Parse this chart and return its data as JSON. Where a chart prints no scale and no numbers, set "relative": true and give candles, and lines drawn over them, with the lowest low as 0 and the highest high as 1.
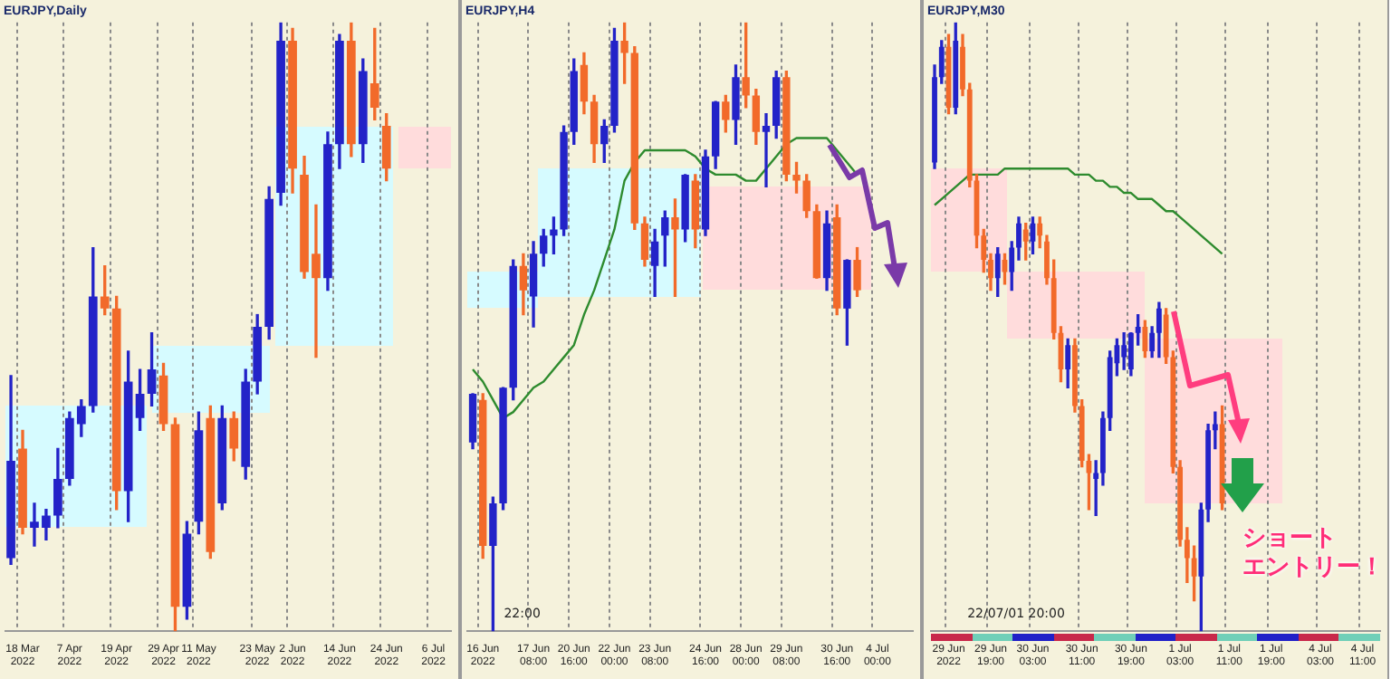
{
  "chart_data": [
    {
      "type": "candlestick",
      "title": "EURJPY,Daily",
      "relative": true,
      "grid": "x",
      "tick_labels": "x",
      "legend": false,
      "categories": [
        null,
        "18 Mar 2022",
        null,
        null,
        null,
        "7 Apr 2022",
        null,
        null,
        null,
        "19 Apr 2022",
        null,
        null,
        null,
        "29 Apr 2022",
        null,
        null,
        "11 May 2022",
        null,
        null,
        null,
        null,
        "23 May 2022",
        null,
        null,
        "2 Jun 2022",
        null,
        null,
        null,
        "14 Jun 2022",
        null,
        null,
        null,
        "24 Jun 2022",
        null,
        null,
        null,
        "6 Jul 2022",
        null
      ],
      "ohlc": [
        [
          0.12,
          0.42,
          0.11,
          0.28
        ],
        [
          0.3,
          0.33,
          0.16,
          0.17
        ],
        [
          0.17,
          0.21,
          0.14,
          0.18
        ],
        [
          0.17,
          0.2,
          0.15,
          0.19
        ],
        [
          0.19,
          0.3,
          0.17,
          0.25
        ],
        [
          0.25,
          0.36,
          0.24,
          0.35
        ],
        [
          0.34,
          0.38,
          0.32,
          0.37
        ],
        [
          0.37,
          0.63,
          0.36,
          0.55
        ],
        [
          0.55,
          0.6,
          0.52,
          0.53
        ],
        [
          0.53,
          0.55,
          0.2,
          0.23
        ],
        [
          0.23,
          0.46,
          0.18,
          0.41
        ],
        [
          0.35,
          0.43,
          0.33,
          0.39
        ],
        [
          0.39,
          0.49,
          0.37,
          0.43
        ],
        [
          0.42,
          0.44,
          0.33,
          0.34
        ],
        [
          0.34,
          0.35,
          0.0,
          0.04
        ],
        [
          0.04,
          0.18,
          0.02,
          0.16
        ],
        [
          0.18,
          0.36,
          0.16,
          0.33
        ],
        [
          0.35,
          0.37,
          0.12,
          0.13
        ],
        [
          0.21,
          0.37,
          0.2,
          0.35
        ],
        [
          0.35,
          0.36,
          0.28,
          0.3
        ],
        [
          0.27,
          0.43,
          0.25,
          0.41
        ],
        [
          0.41,
          0.52,
          0.39,
          0.5
        ],
        [
          0.5,
          0.73,
          0.48,
          0.71
        ],
        [
          0.72,
          1.0,
          0.7,
          0.97
        ],
        [
          0.97,
          0.99,
          0.72,
          0.76
        ],
        [
          0.75,
          0.78,
          0.58,
          0.59
        ],
        [
          0.62,
          0.7,
          0.45,
          0.58
        ],
        [
          0.58,
          0.82,
          0.56,
          0.8
        ],
        [
          0.8,
          0.98,
          0.76,
          0.97
        ],
        [
          0.97,
          1.0,
          0.78,
          0.8
        ],
        [
          0.8,
          0.94,
          0.77,
          0.92
        ],
        [
          0.9,
          0.99,
          0.84,
          0.86
        ],
        [
          0.83,
          0.85,
          0.74,
          0.76
        ],
        null,
        null,
        null,
        null,
        null
      ],
      "colors": [
        "#2323c8",
        "#f26a2a",
        "#2323c8",
        "#2323c8",
        "#2323c8",
        "#2323c8",
        "#2323c8",
        "#2323c8",
        "#f26a2a",
        "#f26a2a",
        "#2323c8",
        "#2323c8",
        "#2323c8",
        "#f26a2a",
        "#f26a2a",
        "#2323c8",
        "#2323c8",
        "#f26a2a",
        "#2323c8",
        "#f26a2a",
        "#2323c8",
        "#2323c8",
        "#2323c8",
        "#2323c8",
        "#f26a2a",
        "#f26a2a",
        "#f26a2a",
        "#2323c8",
        "#2323c8",
        "#f26a2a",
        "#2323c8",
        "#f26a2a",
        "#f26a2a",
        null,
        null,
        null,
        null,
        null
      ]
    },
    {
      "type": "candlestick",
      "title": "EURJPY,H4",
      "relative": true,
      "grid": "x",
      "tick_labels": "x",
      "legend": false,
      "annotations": [
        "22:00"
      ],
      "categories": [
        null,
        "16 Jun 2022",
        null,
        null,
        null,
        null,
        "17 Jun 08:00",
        null,
        null,
        null,
        "20 Jun 16:00",
        null,
        null,
        null,
        "22 Jun 00:00",
        null,
        null,
        null,
        "23 Jun 08:00",
        null,
        null,
        null,
        null,
        "24 Jun 16:00",
        null,
        null,
        null,
        "28 Jun 00:00",
        null,
        null,
        null,
        "29 Jun 08:00",
        null,
        null,
        null,
        null,
        "30 Jun 16:00",
        null,
        null,
        null,
        "4 Jul 00:00",
        null,
        null,
        null
      ],
      "ohlc": [
        [
          0.31,
          0.39,
          0.3,
          0.39
        ],
        [
          0.38,
          0.39,
          0.12,
          0.14
        ],
        [
          0.14,
          0.22,
          0.0,
          0.21
        ],
        [
          0.21,
          0.4,
          0.2,
          0.4
        ],
        [
          0.4,
          0.61,
          0.38,
          0.6
        ],
        [
          0.6,
          0.62,
          0.52,
          0.56
        ],
        [
          0.55,
          0.64,
          0.5,
          0.62
        ],
        [
          0.62,
          0.66,
          0.6,
          0.65
        ],
        [
          0.65,
          0.68,
          0.62,
          0.66
        ],
        [
          0.66,
          0.83,
          0.65,
          0.82
        ],
        [
          0.82,
          0.94,
          0.8,
          0.92
        ],
        [
          0.93,
          0.95,
          0.85,
          0.87
        ],
        [
          0.87,
          0.88,
          0.77,
          0.8
        ],
        [
          0.8,
          0.84,
          0.77,
          0.83
        ],
        [
          0.83,
          0.99,
          0.82,
          0.97
        ],
        [
          0.97,
          1.0,
          0.9,
          0.95
        ],
        [
          0.95,
          0.96,
          0.66,
          0.67
        ],
        [
          0.67,
          0.68,
          0.6,
          0.61
        ],
        [
          0.6,
          0.66,
          0.55,
          0.64
        ],
        [
          0.65,
          0.69,
          0.6,
          0.68
        ],
        [
          0.68,
          0.71,
          0.55,
          0.66
        ],
        [
          0.66,
          0.75,
          0.64,
          0.75
        ],
        [
          0.74,
          0.75,
          0.63,
          0.66
        ],
        [
          0.66,
          0.79,
          0.65,
          0.78
        ],
        [
          0.78,
          0.87,
          0.76,
          0.87
        ],
        [
          0.87,
          0.88,
          0.82,
          0.84
        ],
        [
          0.84,
          0.93,
          0.8,
          0.91
        ],
        [
          0.91,
          1.0,
          0.86,
          0.88
        ],
        [
          0.88,
          0.89,
          0.8,
          0.82
        ],
        [
          0.82,
          0.85,
          0.73,
          0.83
        ],
        [
          0.83,
          0.92,
          0.81,
          0.91
        ],
        [
          0.91,
          0.92,
          0.74,
          0.75
        ],
        [
          0.75,
          0.77,
          0.72,
          0.74
        ],
        [
          0.74,
          0.75,
          0.68,
          0.69
        ],
        [
          0.69,
          0.7,
          0.58,
          0.58
        ],
        [
          0.58,
          0.69,
          0.56,
          0.67
        ],
        [
          0.68,
          0.7,
          0.52,
          0.53
        ],
        [
          0.53,
          0.61,
          0.47,
          0.61
        ],
        [
          0.61,
          0.63,
          0.55,
          0.56
        ],
        null,
        null,
        null,
        null,
        null
      ],
      "colors": [
        "#2323c8",
        "#f26a2a",
        "#2323c8",
        "#2323c8",
        "#2323c8",
        "#f26a2a",
        "#2323c8",
        "#2323c8",
        "#2323c8",
        "#2323c8",
        "#2323c8",
        "#f26a2a",
        "#f26a2a",
        "#2323c8",
        "#2323c8",
        "#f26a2a",
        "#f26a2a",
        "#f26a2a",
        "#2323c8",
        "#2323c8",
        "#f26a2a",
        "#2323c8",
        "#f26a2a",
        "#2323c8",
        "#2323c8",
        "#f26a2a",
        "#2323c8",
        "#f26a2a",
        "#f26a2a",
        "#2323c8",
        "#2323c8",
        "#f26a2a",
        "#f26a2a",
        "#f26a2a",
        "#f26a2a",
        "#2323c8",
        "#f26a2a",
        "#2323c8",
        "#f26a2a",
        null,
        null,
        null,
        null,
        null
      ],
      "series": [
        {
          "type": "line",
          "color": "#2e8b2e",
          "values": [
            0.43,
            0.41,
            0.38,
            0.35,
            0.36,
            0.38,
            0.4,
            0.41,
            0.43,
            0.45,
            0.47,
            0.52,
            0.56,
            0.61,
            0.66,
            0.74,
            0.77,
            0.79,
            0.79,
            0.79,
            0.79,
            0.79,
            0.78,
            0.76,
            0.75,
            0.75,
            0.75,
            0.74,
            0.74,
            0.76,
            0.78,
            0.8,
            0.81,
            0.81,
            0.81,
            0.81,
            0.79,
            0.77,
            0.75,
            null,
            null,
            null,
            null,
            null
          ]
        }
      ]
    },
    {
      "type": "candlestick",
      "title": "EURJPY,M30",
      "relative": true,
      "grid": "x",
      "tick_labels": "x",
      "legend": false,
      "annotations": [
        "22/07/01 20:00",
        "ショート",
        "エントリー！"
      ],
      "categories": [
        null,
        null,
        "29 Jun 2022",
        null,
        null,
        null,
        null,
        null,
        "29 Jun 19:00",
        null,
        null,
        null,
        null,
        null,
        "30 Jun 03:00",
        null,
        null,
        null,
        null,
        null,
        null,
        "30 Jun 11:00",
        null,
        null,
        null,
        null,
        null,
        null,
        "30 Jun 19:00",
        null,
        null,
        null,
        null,
        null,
        null,
        "1 Jul 03:00",
        null,
        null,
        null,
        null,
        null,
        null,
        "1 Jul 11:00",
        null,
        null,
        null,
        null,
        null,
        "1 Jul 19:00",
        null,
        null,
        null,
        null,
        null,
        null,
        "4 Jul 03:00",
        null,
        null,
        null,
        null,
        null,
        "4 Jul 11:00",
        null,
        null
      ],
      "ohlc": [
        [
          0.77,
          0.93,
          0.76,
          0.91
        ],
        [
          0.91,
          0.97,
          0.9,
          0.96
        ],
        [
          0.96,
          0.98,
          0.85,
          0.86
        ],
        [
          0.86,
          1.0,
          0.85,
          0.97
        ],
        [
          0.96,
          0.98,
          0.88,
          0.89
        ],
        [
          0.89,
          0.9,
          0.73,
          0.74
        ],
        [
          0.74,
          0.75,
          0.63,
          0.65
        ],
        [
          0.65,
          0.66,
          0.59,
          0.61
        ],
        [
          0.61,
          0.62,
          0.56,
          0.58
        ],
        [
          0.58,
          0.63,
          0.55,
          0.62
        ],
        [
          0.61,
          0.62,
          0.57,
          0.59
        ],
        [
          0.59,
          0.64,
          0.56,
          0.63
        ],
        [
          0.63,
          0.68,
          0.61,
          0.67
        ],
        [
          0.66,
          0.67,
          0.61,
          0.64
        ],
        [
          0.64,
          0.68,
          0.62,
          0.67
        ],
        [
          0.67,
          0.68,
          0.63,
          0.65
        ],
        [
          0.64,
          0.65,
          0.57,
          0.58
        ],
        [
          0.58,
          0.61,
          0.48,
          0.49
        ],
        [
          0.49,
          0.5,
          0.41,
          0.43
        ],
        [
          0.43,
          0.48,
          0.4,
          0.47
        ],
        [
          0.47,
          0.48,
          0.36,
          0.37
        ],
        [
          0.37,
          0.38,
          0.27,
          0.28
        ],
        [
          0.28,
          0.29,
          0.2,
          0.26
        ],
        [
          0.25,
          0.28,
          0.19,
          0.26
        ],
        [
          0.26,
          0.36,
          0.24,
          0.35
        ],
        [
          0.35,
          0.46,
          0.33,
          0.45
        ],
        [
          0.44,
          0.48,
          0.42,
          0.47
        ],
        [
          0.45,
          0.49,
          0.43,
          0.47
        ],
        [
          0.43,
          0.49,
          0.42,
          0.49
        ],
        [
          0.49,
          0.52,
          0.47,
          0.5
        ],
        [
          0.5,
          0.51,
          0.45,
          0.46
        ],
        [
          0.46,
          0.5,
          0.45,
          0.49
        ],
        [
          0.49,
          0.54,
          0.45,
          0.53
        ],
        [
          0.52,
          0.53,
          0.44,
          0.45
        ],
        [
          0.45,
          0.46,
          0.26,
          0.27
        ],
        [
          0.27,
          0.28,
          0.14,
          0.15
        ],
        [
          0.15,
          0.17,
          0.08,
          0.12
        ],
        [
          0.12,
          0.14,
          0.05,
          0.09
        ],
        [
          0.09,
          0.21,
          0.0,
          0.2
        ],
        [
          0.2,
          0.34,
          0.18,
          0.33
        ],
        [
          0.33,
          0.36,
          0.3,
          0.34
        ],
        [
          0.34,
          0.37,
          0.2,
          0.21
        ],
        null,
        null,
        null,
        null,
        null,
        null,
        null,
        null,
        null,
        null,
        null,
        null,
        null,
        null,
        null,
        null,
        null,
        null,
        null,
        null,
        null,
        null
      ],
      "colors": [
        "#2323c8",
        "#2323c8",
        "#f26a2a",
        "#2323c8",
        "#f26a2a",
        "#f26a2a",
        "#f26a2a",
        "#f26a2a",
        "#f26a2a",
        "#2323c8",
        "#f26a2a",
        "#2323c8",
        "#2323c8",
        "#f26a2a",
        "#2323c8",
        "#f26a2a",
        "#f26a2a",
        "#f26a2a",
        "#f26a2a",
        "#2323c8",
        "#f26a2a",
        "#f26a2a",
        "#f26a2a",
        "#2323c8",
        "#2323c8",
        "#2323c8",
        "#2323c8",
        "#2323c8",
        "#2323c8",
        "#2323c8",
        "#f26a2a",
        "#2323c8",
        "#2323c8",
        "#f26a2a",
        "#f26a2a",
        "#f26a2a",
        "#f26a2a",
        "#f26a2a",
        "#2323c8",
        "#2323c8",
        "#2323c8",
        "#f26a2a",
        null,
        null,
        null,
        null,
        null,
        null,
        null,
        null,
        null,
        null,
        null,
        null,
        null,
        null,
        null,
        null,
        null,
        null,
        null,
        null,
        null,
        null
      ],
      "series": [
        {
          "type": "line",
          "color": "#2e8b2e",
          "values": [
            0.7,
            0.71,
            0.72,
            0.73,
            0.74,
            0.75,
            0.75,
            0.75,
            0.75,
            0.75,
            0.76,
            0.76,
            0.76,
            0.76,
            0.76,
            0.76,
            0.76,
            0.76,
            0.76,
            0.76,
            0.75,
            0.75,
            0.75,
            0.74,
            0.74,
            0.73,
            0.73,
            0.72,
            0.72,
            0.71,
            0.71,
            0.71,
            0.7,
            0.69,
            0.69,
            0.68,
            0.67,
            0.66,
            0.65,
            0.64,
            0.63,
            0.62,
            null,
            null,
            null,
            null,
            null,
            null,
            null,
            null,
            null,
            null,
            null,
            null,
            null,
            null,
            null,
            null,
            null,
            null,
            null,
            null,
            null,
            null
          ]
        }
      ]
    }
  ]
}
